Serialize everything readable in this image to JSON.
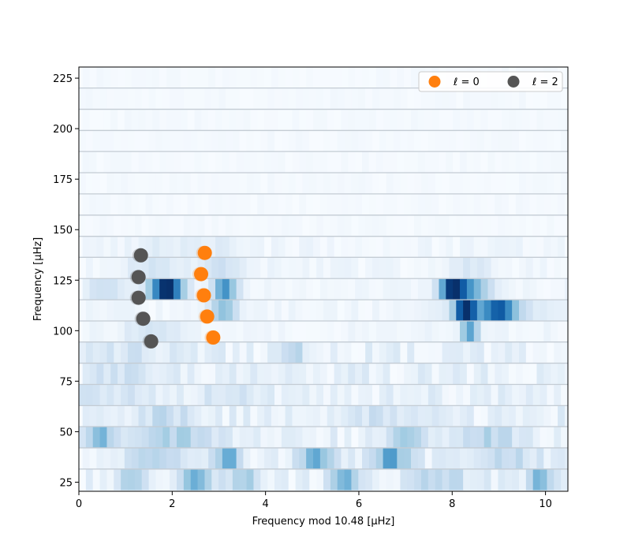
{
  "chart_data": {
    "type": "heatmap",
    "xlabel": "Frequency mod 10.48 [μHz]",
    "ylabel": "Frequency [μHz]",
    "xlim": [
      0,
      10.48
    ],
    "ylim": [
      20.5,
      230.5
    ],
    "x_ticks": [
      0,
      2,
      4,
      6,
      8,
      10
    ],
    "y_ticks": [
      25,
      50,
      75,
      100,
      125,
      150,
      175,
      200,
      225
    ],
    "x_tick_labels": [
      "0",
      "2",
      "4",
      "6",
      "8",
      "10"
    ],
    "y_tick_labels": [
      "25",
      "50",
      "75",
      "100",
      "125",
      "150",
      "175",
      "200",
      "225"
    ],
    "grid": false,
    "colormap": "Blues",
    "row_step": 10.48,
    "row_starts": [
      31.5,
      42.0,
      52.5,
      62.9,
      73.4,
      83.9,
      94.4,
      104.8,
      115.3,
      125.8,
      136.3,
      146.7,
      157.2,
      167.7,
      178.2,
      188.7,
      199.1,
      209.6,
      220.1,
      230.5
    ],
    "hot_spots": [
      {
        "row": 0,
        "x": 2.5,
        "w": 0.3,
        "i": 0.4
      },
      {
        "row": 0,
        "x": 1.2,
        "w": 0.3,
        "i": 0.3
      },
      {
        "row": 0,
        "x": 3.5,
        "w": 0.4,
        "i": 0.25
      },
      {
        "row": 0,
        "x": 5.7,
        "w": 0.3,
        "i": 0.35
      },
      {
        "row": 0,
        "x": 9.9,
        "w": 0.3,
        "i": 0.35
      },
      {
        "row": 0,
        "x": 7.7,
        "w": 0.6,
        "i": 0.22
      },
      {
        "row": 1,
        "x": 3.1,
        "w": 0.3,
        "i": 0.45
      },
      {
        "row": 1,
        "x": 5.0,
        "w": 0.4,
        "i": 0.45
      },
      {
        "row": 1,
        "x": 6.6,
        "w": 0.4,
        "i": 0.45
      },
      {
        "row": 1,
        "x": 1.6,
        "w": 0.6,
        "i": 0.22
      },
      {
        "row": 1,
        "x": 9.0,
        "w": 0.8,
        "i": 0.2
      },
      {
        "row": 2,
        "x": 0.5,
        "w": 0.3,
        "i": 0.35
      },
      {
        "row": 2,
        "x": 2.0,
        "w": 0.8,
        "i": 0.25
      },
      {
        "row": 2,
        "x": 7.0,
        "w": 0.4,
        "i": 0.25
      },
      {
        "row": 2,
        "x": 8.8,
        "w": 0.6,
        "i": 0.2
      },
      {
        "row": 3,
        "x": 1.8,
        "w": 0.6,
        "i": 0.15
      },
      {
        "row": 3,
        "x": 6.5,
        "w": 0.6,
        "i": 0.12
      },
      {
        "row": 4,
        "x": 0.6,
        "w": 0.6,
        "i": 0.12
      },
      {
        "row": 4,
        "x": 3.2,
        "w": 0.5,
        "i": 0.12
      },
      {
        "row": 5,
        "x": 0.7,
        "w": 0.6,
        "i": 0.12
      },
      {
        "row": 6,
        "x": 4.6,
        "w": 0.3,
        "i": 0.2
      },
      {
        "row": 6,
        "x": 1.2,
        "w": 0.6,
        "i": 0.12
      },
      {
        "row": 7,
        "x": 8.3,
        "w": 0.2,
        "i": 0.5
      },
      {
        "row": 7,
        "x": 1.5,
        "w": 0.6,
        "i": 0.15
      },
      {
        "row": 8,
        "x": 8.3,
        "w": 0.25,
        "i": 0.85
      },
      {
        "row": 8,
        "x": 9.0,
        "w": 0.3,
        "i": 0.6
      },
      {
        "row": 8,
        "x": 3.1,
        "w": 0.3,
        "i": 0.35
      },
      {
        "row": 8,
        "x": 8.9,
        "w": 1.0,
        "i": 0.25
      },
      {
        "row": 9,
        "x": 1.8,
        "w": 0.35,
        "i": 1.0
      },
      {
        "row": 9,
        "x": 3.05,
        "w": 0.25,
        "i": 0.6
      },
      {
        "row": 9,
        "x": 7.95,
        "w": 0.3,
        "i": 0.95
      },
      {
        "row": 9,
        "x": 8.4,
        "w": 0.4,
        "i": 0.35
      },
      {
        "row": 9,
        "x": 0.5,
        "w": 0.5,
        "i": 0.15
      },
      {
        "row": 10,
        "x": 3.0,
        "w": 0.4,
        "i": 0.2
      },
      {
        "row": 10,
        "x": 1.6,
        "w": 0.6,
        "i": 0.15
      },
      {
        "row": 10,
        "x": 8.4,
        "w": 0.5,
        "i": 0.12
      },
      {
        "row": 11,
        "x": 1.8,
        "w": 0.6,
        "i": 0.08
      },
      {
        "row": 11,
        "x": 3.0,
        "w": 0.5,
        "i": 0.08
      }
    ],
    "series": [
      {
        "name": "ℓ = 0",
        "color": "#ff7f0e",
        "marker": "circle",
        "points": [
          {
            "x": 2.88,
            "y": 96.6
          },
          {
            "x": 2.75,
            "y": 107.0
          },
          {
            "x": 2.68,
            "y": 117.5
          },
          {
            "x": 2.62,
            "y": 128.0
          },
          {
            "x": 2.7,
            "y": 138.5
          }
        ]
      },
      {
        "name": "ℓ = 2",
        "color": "#555555",
        "marker": "circle",
        "points": [
          {
            "x": 1.55,
            "y": 94.7
          },
          {
            "x": 1.38,
            "y": 105.9
          },
          {
            "x": 1.28,
            "y": 116.3
          },
          {
            "x": 1.28,
            "y": 126.5
          },
          {
            "x": 1.33,
            "y": 137.3
          }
        ]
      }
    ],
    "legend": {
      "position": "top-right",
      "columns": 2
    }
  }
}
